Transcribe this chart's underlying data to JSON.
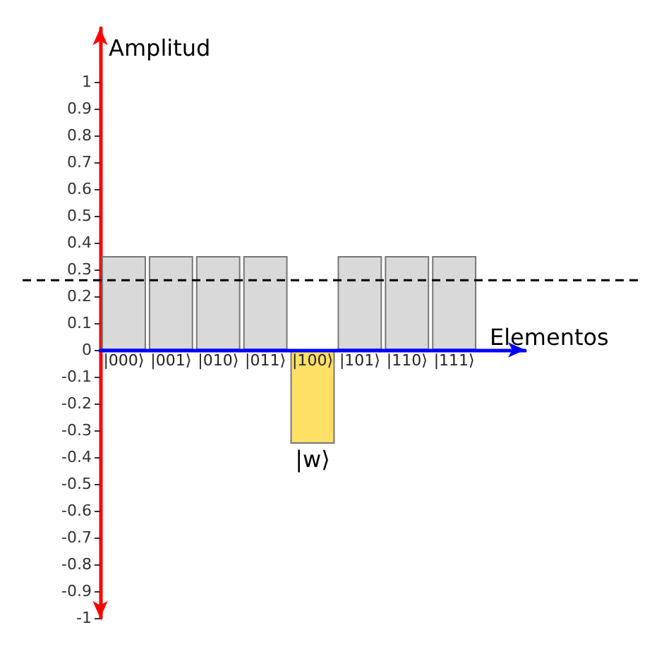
{
  "chart_data": {
    "type": "bar",
    "xlabel": "Elementos",
    "ylabel": "Amplitud",
    "categories": [
      "|000⟩",
      "|001⟩",
      "|010⟩",
      "|011⟩",
      "|100⟩",
      "|101⟩",
      "|110⟩",
      "|111⟩"
    ],
    "values": [
      0.35,
      0.35,
      0.35,
      0.35,
      -0.35,
      0.35,
      0.35,
      0.35
    ],
    "colors": [
      "#d9d9d9",
      "#d9d9d9",
      "#d9d9d9",
      "#d9d9d9",
      "#ffe066",
      "#d9d9d9",
      "#d9d9d9",
      "#d9d9d9"
    ],
    "ylim": [
      -1,
      1.2
    ],
    "yticks": [
      -1,
      -0.9,
      -0.8,
      -0.7,
      -0.6,
      -0.5,
      -0.4,
      -0.3,
      -0.2,
      -0.1,
      0,
      0.1,
      0.2,
      0.3,
      0.4,
      0.5,
      0.6,
      0.7,
      0.8,
      0.9,
      1
    ],
    "ref_lines": [
      {
        "axis": "y",
        "value": 0.26,
        "label": null,
        "color": "#000000",
        "line_style": "dashed"
      }
    ],
    "annotations": [
      {
        "text": "|w⟩",
        "x": "|100⟩",
        "y": -0.35
      }
    ],
    "grid": false
  }
}
